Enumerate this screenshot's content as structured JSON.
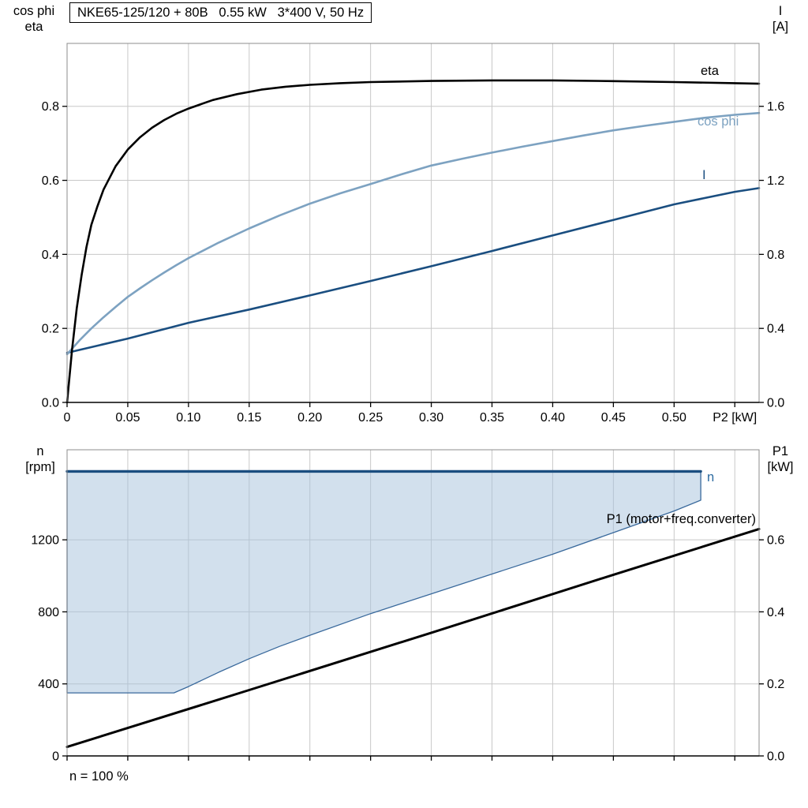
{
  "title_box": "NKE65-125/120 + 80B   0.55 kW   3*400 V, 50 Hz",
  "footer": "n = 100 %",
  "labels": {
    "eta": "eta",
    "cos_phi": "cos phi",
    "current": "I",
    "speed": "n",
    "p1": "P1 (motor+freq.converter)"
  },
  "axis_titles": {
    "upper_left": [
      "cos phi",
      "eta"
    ],
    "upper_right": [
      "I",
      "[A]"
    ],
    "lower_left": [
      "n",
      "[rpm]"
    ],
    "lower_right": [
      "P1",
      "[kW]"
    ]
  },
  "colors": {
    "black": "#000000",
    "steel_blue": "#7da2c1",
    "navy": "#1a4e80",
    "area_fill": "rgba(165,193,219,0.5)",
    "area_edge": "#39699c",
    "grid": "#c8c8c8",
    "frame": "#8c8c8c"
  },
  "chart_data": [
    {
      "type": "line",
      "title": "NKE65-125/120 + 80B   0.55 kW   3*400 V, 50 Hz",
      "xlabel": "P2 [kW]",
      "ylabel_left": "cos phi / eta",
      "ylabel_right": "I [A]",
      "xlim": [
        0,
        0.57
      ],
      "x_gridlines": [
        0.05,
        0.1,
        0.15,
        0.2,
        0.25,
        0.3,
        0.35,
        0.4,
        0.45,
        0.5,
        0.55
      ],
      "x_tick_values": [
        0,
        0.05,
        0.1,
        0.15,
        0.2,
        0.25,
        0.3,
        0.35,
        0.4,
        0.45,
        0.5,
        0.55
      ],
      "x_ticks": [
        {
          "v": 0,
          "label": "0"
        },
        {
          "v": 0.05,
          "label": "0.05"
        },
        {
          "v": 0.1,
          "label": "0.10"
        },
        {
          "v": 0.15,
          "label": "0.15"
        },
        {
          "v": 0.2,
          "label": "0.20"
        },
        {
          "v": 0.25,
          "label": "0.25"
        },
        {
          "v": 0.3,
          "label": "0.30"
        },
        {
          "v": 0.35,
          "label": "0.35"
        },
        {
          "v": 0.4,
          "label": "0.40"
        },
        {
          "v": 0.45,
          "label": "0.45"
        },
        {
          "v": 0.5,
          "label": "0.50"
        },
        {
          "v": 0.55,
          "label": "P2 [kW]"
        }
      ],
      "left_axis": {
        "lim": [
          0,
          0.97
        ],
        "gridlines": [
          0.2,
          0.4,
          0.6,
          0.8
        ],
        "ticks": [
          {
            "v": 0,
            "label": "0.0"
          },
          {
            "v": 0.2,
            "label": "0.2"
          },
          {
            "v": 0.4,
            "label": "0.4"
          },
          {
            "v": 0.6,
            "label": "0.6"
          },
          {
            "v": 0.8,
            "label": "0.8"
          }
        ]
      },
      "right_axis": {
        "lim": [
          0,
          1.94
        ],
        "gridlines": [],
        "ticks": [
          {
            "v": 0,
            "label": "0.0"
          },
          {
            "v": 0.4,
            "label": "0.4"
          },
          {
            "v": 0.8,
            "label": "0.8"
          },
          {
            "v": 1.2,
            "label": "1.2"
          },
          {
            "v": 1.6,
            "label": "1.6"
          }
        ]
      },
      "series": [
        {
          "name": "I",
          "axis": "right",
          "color": "#1a4e80",
          "width": 2.6,
          "points": [
            [
              0,
              0.268
            ],
            [
              0.05,
              0.345
            ],
            [
              0.1,
              0.43
            ],
            [
              0.15,
              0.502
            ],
            [
              0.2,
              0.578
            ],
            [
              0.25,
              0.656
            ],
            [
              0.3,
              0.736
            ],
            [
              0.35,
              0.818
            ],
            [
              0.4,
              0.902
            ],
            [
              0.45,
              0.986
            ],
            [
              0.5,
              1.07
            ],
            [
              0.55,
              1.138
            ],
            [
              0.57,
              1.158
            ]
          ]
        },
        {
          "name": "cos phi",
          "axis": "left",
          "color": "#7da2c1",
          "width": 2.6,
          "points": [
            [
              0,
              0.13
            ],
            [
              0.01,
              0.167
            ],
            [
              0.02,
              0.2
            ],
            [
              0.03,
              0.23
            ],
            [
              0.04,
              0.258
            ],
            [
              0.05,
              0.285
            ],
            [
              0.06,
              0.308
            ],
            [
              0.07,
              0.33
            ],
            [
              0.08,
              0.351
            ],
            [
              0.09,
              0.371
            ],
            [
              0.1,
              0.39
            ],
            [
              0.125,
              0.432
            ],
            [
              0.15,
              0.47
            ],
            [
              0.175,
              0.505
            ],
            [
              0.2,
              0.537
            ],
            [
              0.225,
              0.565
            ],
            [
              0.25,
              0.59
            ],
            [
              0.275,
              0.616
            ],
            [
              0.3,
              0.64
            ],
            [
              0.325,
              0.658
            ],
            [
              0.35,
              0.675
            ],
            [
              0.375,
              0.691
            ],
            [
              0.4,
              0.706
            ],
            [
              0.425,
              0.721
            ],
            [
              0.45,
              0.735
            ],
            [
              0.475,
              0.747
            ],
            [
              0.5,
              0.758
            ],
            [
              0.525,
              0.769
            ],
            [
              0.55,
              0.777
            ],
            [
              0.57,
              0.782
            ]
          ]
        },
        {
          "name": "eta",
          "axis": "left",
          "color": "#000000",
          "width": 2.6,
          "points": [
            [
              0,
              0
            ],
            [
              0.004,
              0.14
            ],
            [
              0.008,
              0.255
            ],
            [
              0.012,
              0.345
            ],
            [
              0.016,
              0.42
            ],
            [
              0.02,
              0.48
            ],
            [
              0.025,
              0.53
            ],
            [
              0.03,
              0.575
            ],
            [
              0.04,
              0.638
            ],
            [
              0.05,
              0.683
            ],
            [
              0.06,
              0.716
            ],
            [
              0.07,
              0.742
            ],
            [
              0.08,
              0.763
            ],
            [
              0.09,
              0.78
            ],
            [
              0.1,
              0.794
            ],
            [
              0.12,
              0.817
            ],
            [
              0.14,
              0.833
            ],
            [
              0.16,
              0.845
            ],
            [
              0.18,
              0.853
            ],
            [
              0.2,
              0.858
            ],
            [
              0.225,
              0.8625
            ],
            [
              0.25,
              0.8655
            ],
            [
              0.3,
              0.8685
            ],
            [
              0.35,
              0.87
            ],
            [
              0.4,
              0.87
            ],
            [
              0.45,
              0.868
            ],
            [
              0.5,
              0.8655
            ],
            [
              0.55,
              0.8625
            ],
            [
              0.57,
              0.861
            ]
          ]
        }
      ]
    },
    {
      "type": "line",
      "title": "",
      "xlabel": "",
      "ylabel_left": "n [rpm]",
      "ylabel_right": "P1 [kW]",
      "annotation": "n = 100 %",
      "xlim": [
        0,
        0.57
      ],
      "x_gridlines": [
        0.05,
        0.1,
        0.15,
        0.2,
        0.25,
        0.3,
        0.35,
        0.4,
        0.45,
        0.5,
        0.55
      ],
      "x_tick_values": [
        0,
        0.05,
        0.1,
        0.15,
        0.2,
        0.25,
        0.3,
        0.35,
        0.4,
        0.45,
        0.5,
        0.55
      ],
      "x_ticks": [],
      "left_axis": {
        "lim": [
          0,
          1700
        ],
        "gridlines": [
          400,
          800,
          1200
        ],
        "ticks": [
          {
            "v": 0,
            "label": "0"
          },
          {
            "v": 400,
            "label": "400"
          },
          {
            "v": 800,
            "label": "800"
          },
          {
            "v": 1200,
            "label": "1200"
          }
        ]
      },
      "right_axis": {
        "lim": [
          0,
          0.85
        ],
        "gridlines": [],
        "ticks": [
          {
            "v": 0,
            "label": "0.0"
          },
          {
            "v": 0.2,
            "label": "0.2"
          },
          {
            "v": 0.4,
            "label": "0.4"
          },
          {
            "v": 0.6,
            "label": "0.6"
          }
        ]
      },
      "series": [
        {
          "name": "speed range",
          "axis": "left",
          "color": "#39699c",
          "width": 1.3,
          "fill": "rgba(165,193,219,0.5)",
          "closed": true,
          "points": [
            [
              0,
              350
            ],
            [
              0.088,
              350
            ],
            [
              0.1,
              385
            ],
            [
              0.125,
              465
            ],
            [
              0.15,
              540
            ],
            [
              0.175,
              608
            ],
            [
              0.2,
              670
            ],
            [
              0.25,
              790
            ],
            [
              0.3,
              900
            ],
            [
              0.35,
              1010
            ],
            [
              0.4,
              1120
            ],
            [
              0.45,
              1240
            ],
            [
              0.5,
              1360
            ],
            [
              0.522,
              1420
            ],
            [
              0.522,
              1580
            ],
            [
              0,
              1580
            ]
          ]
        },
        {
          "name": "n",
          "axis": "left",
          "color": "#1a4e80",
          "width": 3.4,
          "points": [
            [
              0,
              1580
            ],
            [
              0.522,
              1580
            ]
          ]
        },
        {
          "name": "P1 (motor+freq.converter)",
          "axis": "right",
          "color": "#000000",
          "width": 3,
          "points": [
            [
              0,
              0.025
            ],
            [
              0.15,
              0.183
            ],
            [
              0.3,
              0.342
            ],
            [
              0.45,
              0.503
            ],
            [
              0.57,
              0.63
            ]
          ]
        }
      ]
    }
  ]
}
